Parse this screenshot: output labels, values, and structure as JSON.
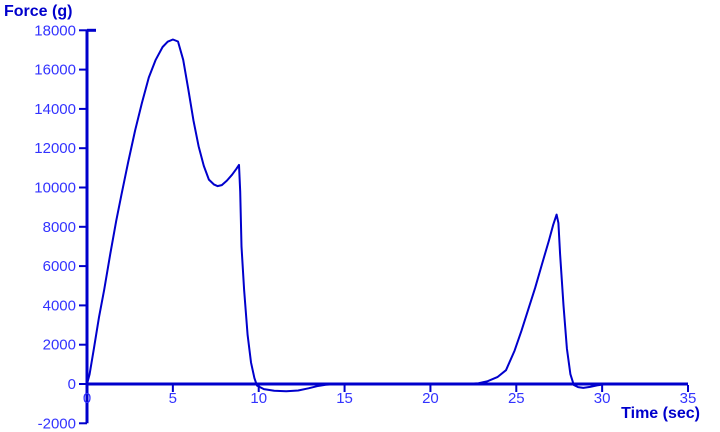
{
  "chart": {
    "y_axis_title": "Force (g)",
    "x_axis_title": "Time (sec)"
  },
  "chart_data": {
    "type": "line",
    "title": "",
    "xlabel": "Time (sec)",
    "ylabel": "Force (g)",
    "xlim": [
      0,
      35
    ],
    "ylim": [
      -2000,
      18000
    ],
    "x_ticks": [
      0,
      5,
      10,
      15,
      20,
      25,
      30,
      35
    ],
    "y_ticks": [
      -2000,
      0,
      2000,
      4000,
      6000,
      8000,
      10000,
      12000,
      14000,
      16000,
      18000
    ],
    "grid": false,
    "legend": false,
    "line_color": "#0000CC",
    "axis_color": "#0000CC",
    "tick_label_color": "#3333FF",
    "series": [
      {
        "name": "force",
        "points": [
          [
            0,
            0
          ],
          [
            0.15,
            500
          ],
          [
            0.4,
            1800
          ],
          [
            0.7,
            3400
          ],
          [
            1.0,
            4800
          ],
          [
            1.35,
            6600
          ],
          [
            1.7,
            8300
          ],
          [
            2.0,
            9600
          ],
          [
            2.4,
            11300
          ],
          [
            2.8,
            12900
          ],
          [
            3.2,
            14300
          ],
          [
            3.6,
            15600
          ],
          [
            4.0,
            16500
          ],
          [
            4.4,
            17150
          ],
          [
            4.7,
            17420
          ],
          [
            5.0,
            17530
          ],
          [
            5.3,
            17430
          ],
          [
            5.6,
            16500
          ],
          [
            5.9,
            15000
          ],
          [
            6.2,
            13400
          ],
          [
            6.5,
            12100
          ],
          [
            6.8,
            11100
          ],
          [
            7.1,
            10400
          ],
          [
            7.4,
            10150
          ],
          [
            7.6,
            10070
          ],
          [
            7.85,
            10120
          ],
          [
            8.15,
            10350
          ],
          [
            8.45,
            10650
          ],
          [
            8.7,
            10950
          ],
          [
            8.85,
            11150
          ],
          [
            8.92,
            9800
          ],
          [
            9.0,
            7000
          ],
          [
            9.15,
            4800
          ],
          [
            9.35,
            2500
          ],
          [
            9.55,
            1100
          ],
          [
            9.75,
            300
          ],
          [
            9.9,
            -80
          ],
          [
            10.3,
            -260
          ],
          [
            10.9,
            -340
          ],
          [
            11.6,
            -370
          ],
          [
            12.3,
            -330
          ],
          [
            12.9,
            -220
          ],
          [
            13.4,
            -110
          ],
          [
            13.9,
            -40
          ],
          [
            14.6,
            0
          ],
          [
            16,
            0
          ],
          [
            18,
            0
          ],
          [
            20,
            0
          ],
          [
            22,
            0
          ],
          [
            22.8,
            40
          ],
          [
            23.3,
            130
          ],
          [
            23.9,
            350
          ],
          [
            24.4,
            700
          ],
          [
            24.9,
            1700
          ],
          [
            25.3,
            2700
          ],
          [
            25.7,
            3800
          ],
          [
            26.1,
            4900
          ],
          [
            26.5,
            6100
          ],
          [
            26.9,
            7300
          ],
          [
            27.15,
            8100
          ],
          [
            27.35,
            8620
          ],
          [
            27.45,
            8200
          ],
          [
            27.55,
            6600
          ],
          [
            27.75,
            4000
          ],
          [
            27.95,
            1800
          ],
          [
            28.15,
            500
          ],
          [
            28.35,
            -50
          ],
          [
            28.6,
            -160
          ],
          [
            28.9,
            -200
          ],
          [
            29.3,
            -150
          ],
          [
            29.7,
            -70
          ],
          [
            30.1,
            -20
          ],
          [
            30.45,
            0
          ]
        ]
      }
    ]
  }
}
